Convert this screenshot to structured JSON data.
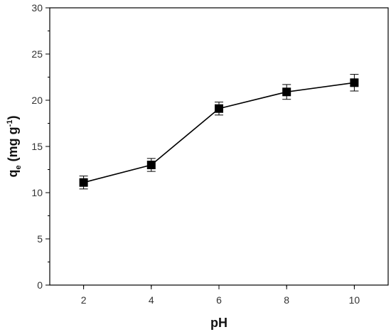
{
  "chart_data": {
    "type": "line",
    "title": "",
    "xlabel": "pH",
    "ylabel": {
      "main": "q",
      "sub": "e",
      "unit": " (mg g",
      "sup": "-1",
      "close": ")"
    },
    "xlim": [
      1,
      11
    ],
    "ylim": [
      0,
      30
    ],
    "xticks": [
      "2",
      "4",
      "6",
      "8",
      "10"
    ],
    "yticks": [
      "0",
      "5",
      "10",
      "15",
      "20",
      "25",
      "30"
    ],
    "grid": false,
    "legend": "none",
    "marker": "filled-square",
    "color": "#000000",
    "series": [
      {
        "x": [
          2,
          4,
          6,
          8,
          10
        ],
        "y": [
          11.1,
          13.0,
          19.1,
          20.9,
          21.9
        ],
        "err": [
          0.7,
          0.7,
          0.7,
          0.8,
          0.9
        ]
      }
    ]
  }
}
